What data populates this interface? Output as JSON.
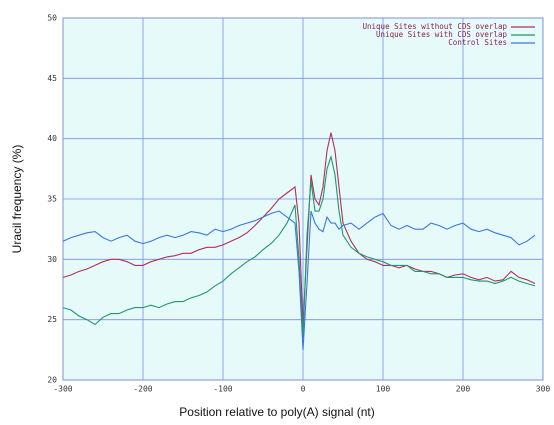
{
  "chart_data": {
    "type": "line",
    "xlabel": "Position relative to poly(A) signal (nt)",
    "ylabel": "Uracil frequency (%)",
    "x": [
      -300,
      -290,
      -280,
      -270,
      -260,
      -250,
      -240,
      -230,
      -220,
      -210,
      -200,
      -190,
      -180,
      -170,
      -160,
      -150,
      -140,
      -130,
      -120,
      -110,
      -100,
      -90,
      -80,
      -70,
      -60,
      -50,
      -40,
      -30,
      -20,
      -10,
      -5,
      0,
      5,
      10,
      15,
      20,
      25,
      30,
      35,
      40,
      45,
      50,
      60,
      70,
      80,
      90,
      100,
      110,
      120,
      130,
      140,
      150,
      160,
      170,
      180,
      190,
      200,
      210,
      220,
      230,
      240,
      250,
      260,
      270,
      280,
      290
    ],
    "series": [
      {
        "name": "Unique Sites without CDS overlap",
        "color": "#b0305a",
        "values": [
          28.5,
          28.7,
          29,
          29.2,
          29.5,
          29.8,
          30,
          30,
          29.8,
          29.5,
          29.5,
          29.8,
          30,
          30.2,
          30.3,
          30.5,
          30.5,
          30.8,
          31,
          31,
          31.2,
          31.5,
          31.8,
          32.2,
          32.8,
          33.5,
          34.2,
          35,
          35.5,
          36,
          33,
          24.5,
          31,
          37,
          35,
          34.5,
          36,
          39,
          40.5,
          39,
          36,
          33,
          31.5,
          30.5,
          30,
          29.8,
          29.5,
          29.5,
          29.3,
          29.5,
          29.2,
          29,
          29,
          28.8,
          28.5,
          28.7,
          28.8,
          28.5,
          28.3,
          28.5,
          28.2,
          28.3,
          29,
          28.5,
          28.3,
          28
        ]
      },
      {
        "name": "Unique Sites with CDS overlap",
        "color": "#209868",
        "values": [
          26,
          25.8,
          25.3,
          25,
          24.6,
          25.2,
          25.5,
          25.5,
          25.8,
          26,
          26,
          26.2,
          26,
          26.3,
          26.5,
          26.5,
          26.8,
          27,
          27.3,
          27.8,
          28.2,
          28.8,
          29.3,
          29.8,
          30.2,
          30.8,
          31.3,
          32,
          33,
          34.5,
          30,
          23.5,
          32,
          36.5,
          34,
          34,
          35,
          37.5,
          38.5,
          37,
          34,
          32,
          31,
          30.5,
          30.2,
          30,
          29.8,
          29.5,
          29.5,
          29.5,
          29,
          29,
          28.8,
          28.8,
          28.5,
          28.5,
          28.5,
          28.3,
          28.2,
          28.2,
          28,
          28.2,
          28.5,
          28.2,
          28,
          27.8
        ]
      },
      {
        "name": "Control Sites",
        "color": "#3a78e0",
        "values": [
          31.5,
          31.8,
          32,
          32.2,
          32.3,
          31.8,
          31.5,
          31.8,
          32,
          31.5,
          31.3,
          31.5,
          31.8,
          32,
          31.8,
          32,
          32.3,
          32.2,
          32,
          32.5,
          32.3,
          32.5,
          32.8,
          33,
          33.2,
          33.5,
          33.8,
          34,
          33.5,
          33,
          29,
          22.5,
          28,
          34,
          33,
          32.5,
          32.3,
          33.5,
          33,
          33,
          32.5,
          32.8,
          33,
          32.5,
          33,
          33.5,
          33.8,
          32.8,
          32.5,
          32.8,
          32.5,
          32.5,
          33,
          32.8,
          32.5,
          32.8,
          33,
          32.5,
          32.3,
          32.5,
          32.2,
          32,
          31.8,
          31.2,
          31.5,
          32
        ]
      }
    ],
    "xlim": [
      -300,
      300
    ],
    "xticks": [
      -300,
      -200,
      -100,
      0,
      100,
      200,
      300
    ],
    "ylim": [
      20,
      50
    ],
    "yticks": [
      20,
      25,
      30,
      35,
      40,
      45,
      50
    ],
    "grid": true,
    "legend": "upper right"
  }
}
